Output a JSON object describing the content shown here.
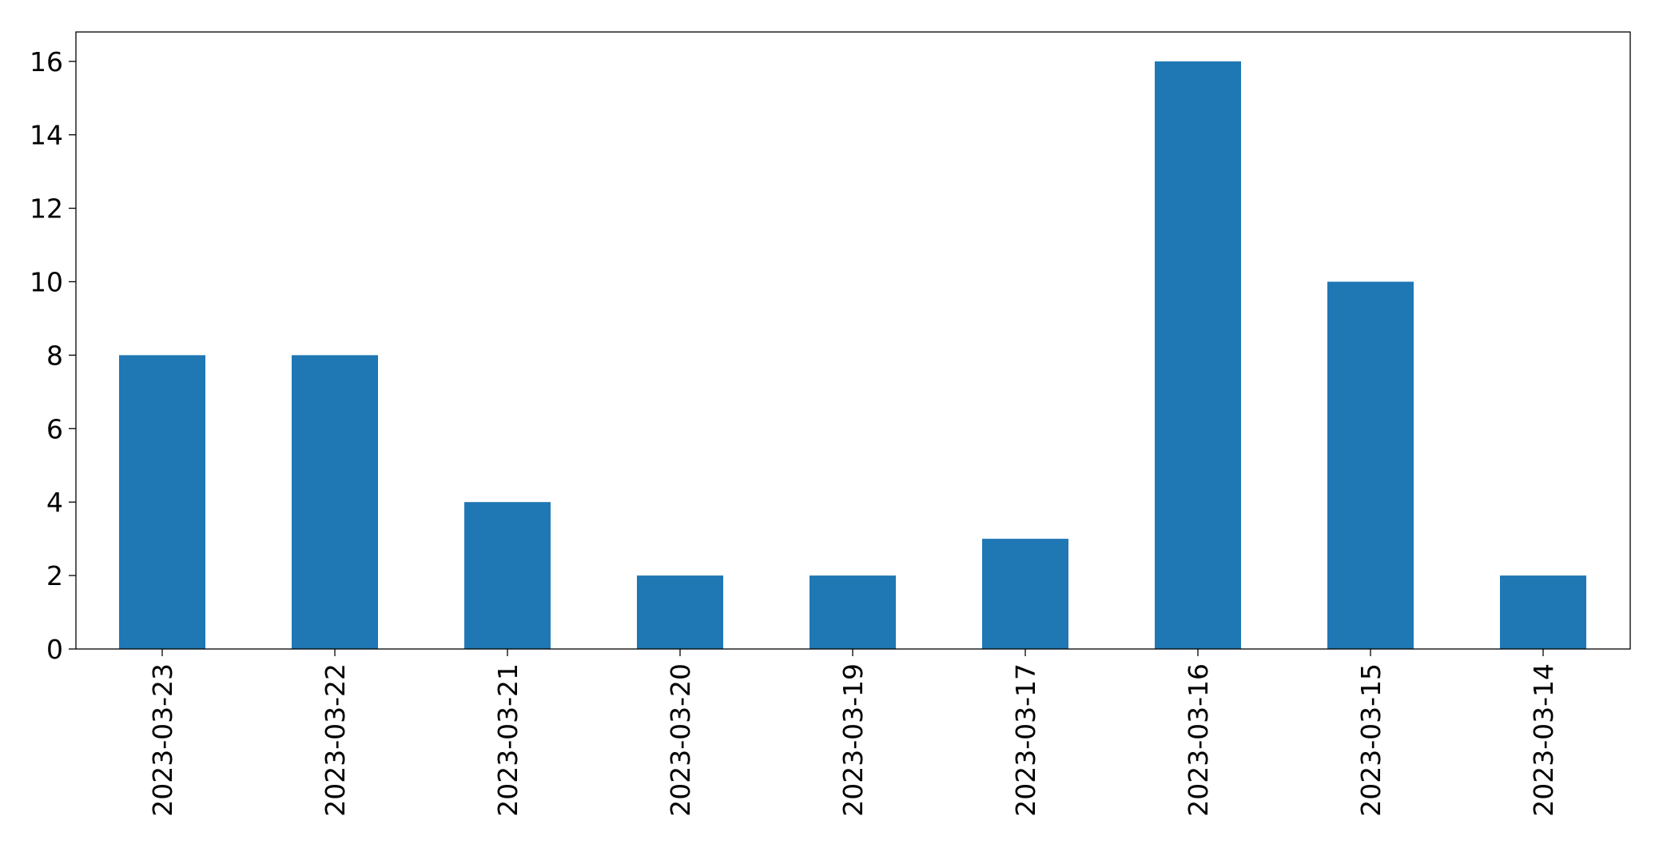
{
  "chart_data": {
    "type": "bar",
    "categories": [
      "2023-03-23",
      "2023-03-22",
      "2023-03-21",
      "2023-03-20",
      "2023-03-19",
      "2023-03-17",
      "2023-03-16",
      "2023-03-15",
      "2023-03-14"
    ],
    "values": [
      8,
      8,
      4,
      2,
      2,
      3,
      16,
      10,
      2
    ],
    "title": "",
    "xlabel": "",
    "ylabel": "",
    "ylim": [
      0,
      16.8
    ],
    "yticks": [
      0,
      2,
      4,
      6,
      8,
      10,
      12,
      14,
      16
    ],
    "grid": false,
    "legend": "none",
    "bar_color": "#1f77b4"
  }
}
